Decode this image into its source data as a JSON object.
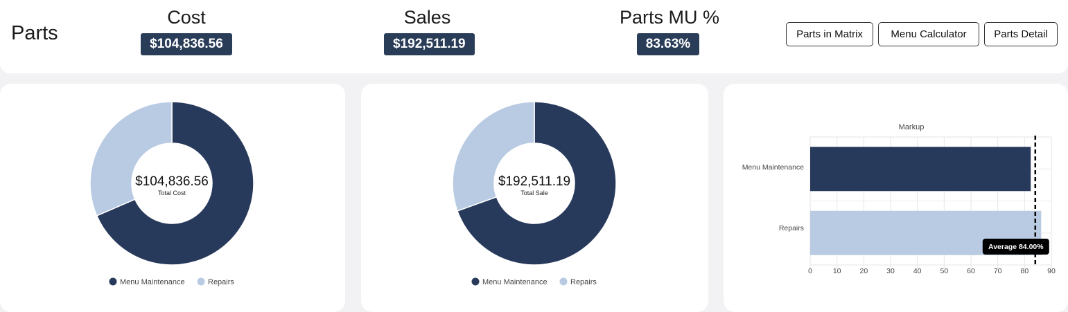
{
  "header": {
    "title": "Parts",
    "kpis": [
      {
        "label": "Cost",
        "value": "$104,836.56"
      },
      {
        "label": "Sales",
        "value": "$192,511.19"
      },
      {
        "label": "Parts MU %",
        "value": "83.63%"
      }
    ],
    "buttons": [
      "Parts in Matrix",
      "Menu Calculator",
      "Parts Detail"
    ]
  },
  "colors": {
    "dark": "#283a5b",
    "light": "#b8cbe2"
  },
  "chart_data": [
    {
      "type": "pie",
      "variant": "donut",
      "categories": [
        "Menu Maintenance",
        "Repairs"
      ],
      "values": [
        68.5,
        31.5
      ],
      "center_value": "$104,836.56",
      "center_label": "Total Cost",
      "legend": "bottom"
    },
    {
      "type": "pie",
      "variant": "donut",
      "categories": [
        "Menu Maintenance",
        "Repairs"
      ],
      "values": [
        69.5,
        30.5
      ],
      "center_value": "$192,511.19",
      "center_label": "Total Sale",
      "legend": "bottom"
    },
    {
      "type": "bar",
      "orientation": "horizontal",
      "title": "Markup",
      "categories": [
        "Menu Maintenance",
        "Repairs"
      ],
      "values": [
        82.3,
        86.2
      ],
      "xlim": [
        0,
        90
      ],
      "xticks": [
        0,
        10,
        20,
        30,
        40,
        50,
        60,
        70,
        80,
        90
      ],
      "grid": true,
      "average": 84,
      "average_label": "Average 84.00%"
    }
  ]
}
